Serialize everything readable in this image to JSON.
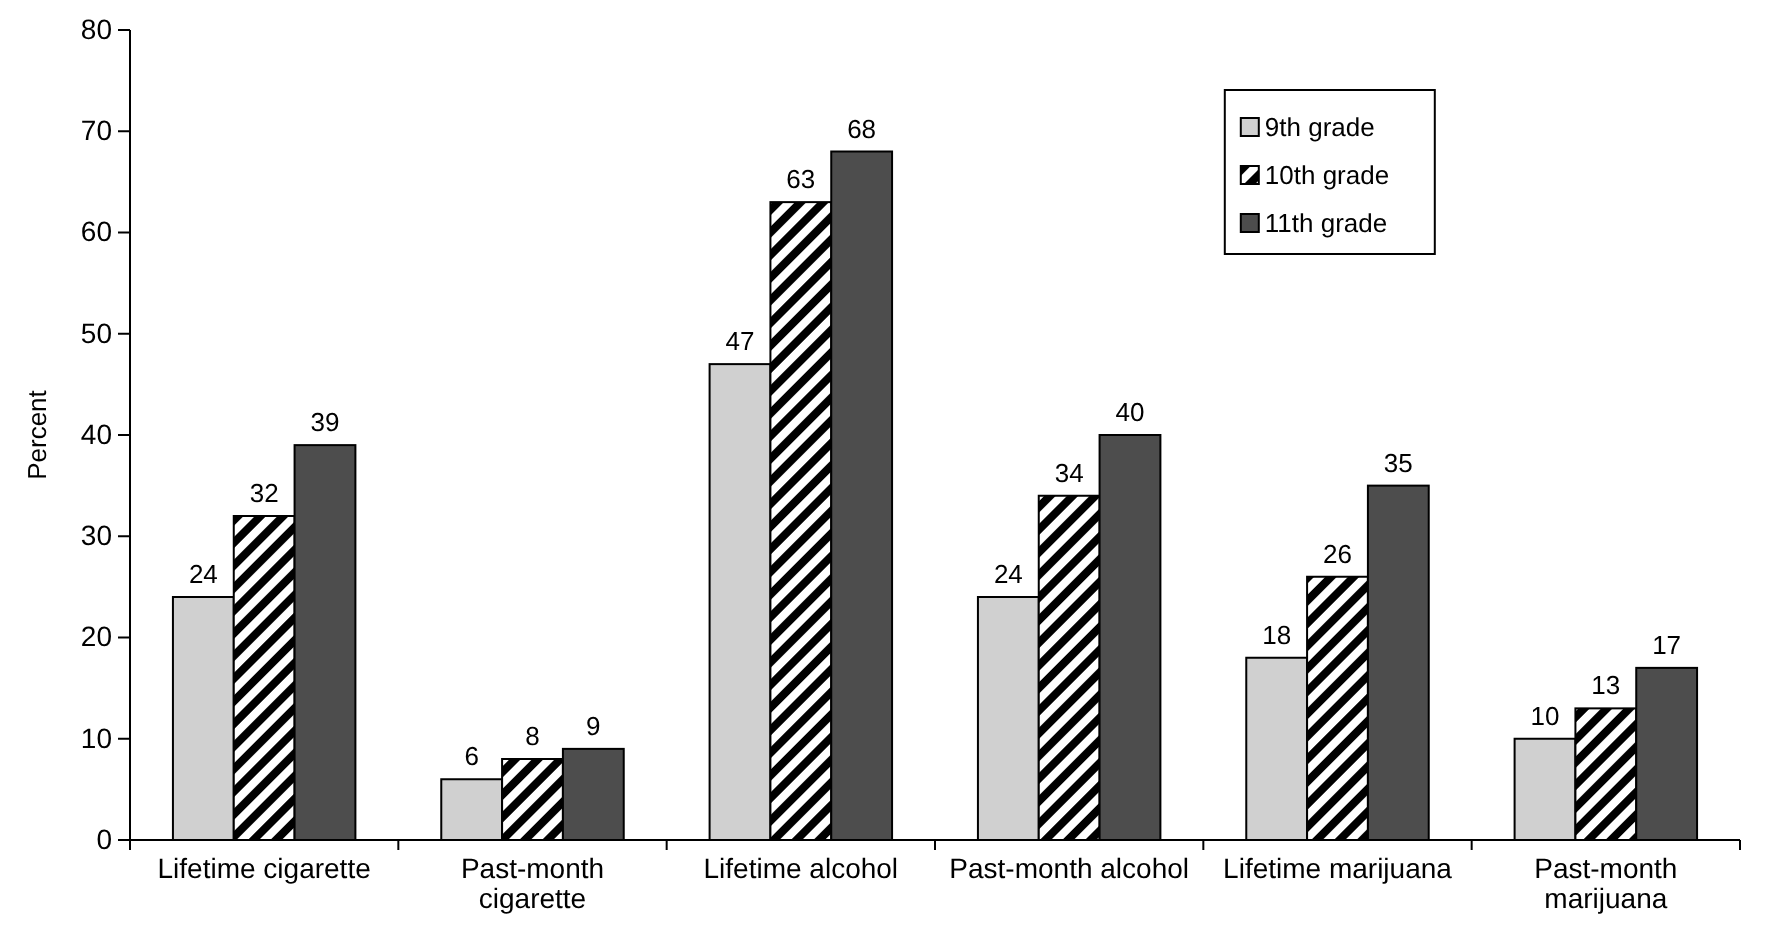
{
  "chart_data": {
    "type": "bar",
    "ylabel": "Percent",
    "categories": [
      "Lifetime cigarette",
      "Past-month cigarette",
      "Lifetime alcohol",
      "Past-month alcohol",
      "Lifetime marijuana",
      "Past-month marijuana"
    ],
    "series": [
      {
        "name": "9th grade",
        "color": "#d0d0d0",
        "values": [
          24,
          6,
          47,
          24,
          18,
          10
        ]
      },
      {
        "name": "10th grade",
        "color": "#000000",
        "values": [
          32,
          8,
          63,
          34,
          26,
          13
        ]
      },
      {
        "name": "11th grade",
        "color": "#4d4d4d",
        "values": [
          39,
          9,
          68,
          40,
          35,
          17
        ]
      }
    ],
    "ylim": [
      0,
      80
    ],
    "yticks": [
      0,
      10,
      20,
      30,
      40,
      50,
      60,
      70,
      80
    ],
    "data_labels": true,
    "grid": false,
    "legend": "top right"
  }
}
